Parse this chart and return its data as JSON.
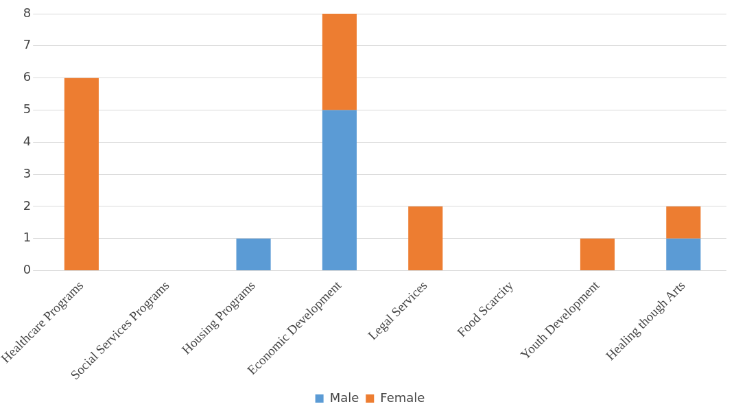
{
  "chart_data": {
    "type": "bar",
    "stacked": true,
    "categories": [
      "Healthcare Programs",
      "Social Services Programs",
      "Housing Programs",
      "Economic Development",
      "Legal Services",
      "Food Scarcity",
      "Youth Development",
      "Healing though Arts"
    ],
    "series": [
      {
        "name": "Male",
        "color": "#5b9bd5",
        "values": [
          0,
          0,
          1,
          5,
          0,
          0,
          0,
          1
        ]
      },
      {
        "name": "Female",
        "color": "#ed7d31",
        "values": [
          6,
          0,
          0,
          3,
          2,
          0,
          1,
          1
        ]
      }
    ],
    "ylim": [
      0,
      8
    ],
    "yticks": [
      0,
      1,
      2,
      3,
      4,
      5,
      6,
      7,
      8
    ],
    "grid": "y",
    "legend": "bottom"
  }
}
